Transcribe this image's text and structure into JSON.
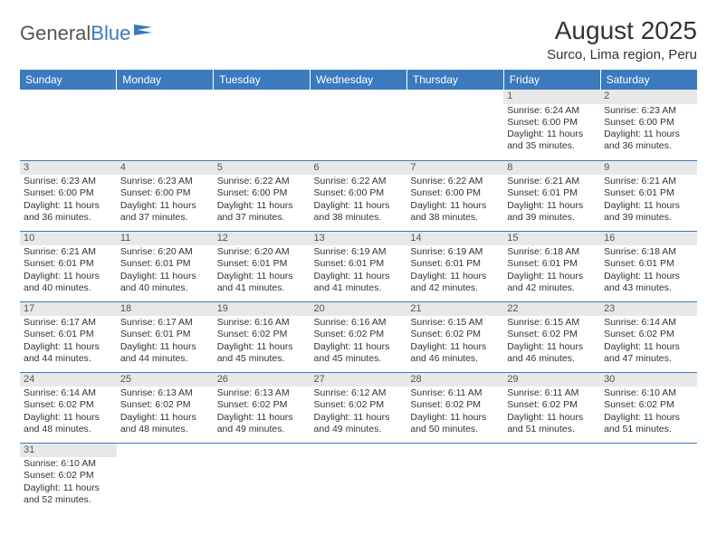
{
  "logo": {
    "general": "General",
    "blue": "Blue"
  },
  "header": {
    "month": "August 2025",
    "location": "Surco, Lima region, Peru"
  },
  "colors": {
    "brand_blue": "#3a7abd",
    "header_text": "#ffffff",
    "daynum_bg": "#e8e8e8",
    "text": "#333333",
    "cell_border": "#3a7abd"
  },
  "weekdays": [
    "Sunday",
    "Monday",
    "Tuesday",
    "Wednesday",
    "Thursday",
    "Friday",
    "Saturday"
  ],
  "cells": [
    [
      null,
      null,
      null,
      null,
      null,
      {
        "n": "1",
        "sr": "Sunrise: 6:24 AM",
        "ss": "Sunset: 6:00 PM",
        "dl": "Daylight: 11 hours and 35 minutes."
      },
      {
        "n": "2",
        "sr": "Sunrise: 6:23 AM",
        "ss": "Sunset: 6:00 PM",
        "dl": "Daylight: 11 hours and 36 minutes."
      }
    ],
    [
      {
        "n": "3",
        "sr": "Sunrise: 6:23 AM",
        "ss": "Sunset: 6:00 PM",
        "dl": "Daylight: 11 hours and 36 minutes."
      },
      {
        "n": "4",
        "sr": "Sunrise: 6:23 AM",
        "ss": "Sunset: 6:00 PM",
        "dl": "Daylight: 11 hours and 37 minutes."
      },
      {
        "n": "5",
        "sr": "Sunrise: 6:22 AM",
        "ss": "Sunset: 6:00 PM",
        "dl": "Daylight: 11 hours and 37 minutes."
      },
      {
        "n": "6",
        "sr": "Sunrise: 6:22 AM",
        "ss": "Sunset: 6:00 PM",
        "dl": "Daylight: 11 hours and 38 minutes."
      },
      {
        "n": "7",
        "sr": "Sunrise: 6:22 AM",
        "ss": "Sunset: 6:00 PM",
        "dl": "Daylight: 11 hours and 38 minutes."
      },
      {
        "n": "8",
        "sr": "Sunrise: 6:21 AM",
        "ss": "Sunset: 6:01 PM",
        "dl": "Daylight: 11 hours and 39 minutes."
      },
      {
        "n": "9",
        "sr": "Sunrise: 6:21 AM",
        "ss": "Sunset: 6:01 PM",
        "dl": "Daylight: 11 hours and 39 minutes."
      }
    ],
    [
      {
        "n": "10",
        "sr": "Sunrise: 6:21 AM",
        "ss": "Sunset: 6:01 PM",
        "dl": "Daylight: 11 hours and 40 minutes."
      },
      {
        "n": "11",
        "sr": "Sunrise: 6:20 AM",
        "ss": "Sunset: 6:01 PM",
        "dl": "Daylight: 11 hours and 40 minutes."
      },
      {
        "n": "12",
        "sr": "Sunrise: 6:20 AM",
        "ss": "Sunset: 6:01 PM",
        "dl": "Daylight: 11 hours and 41 minutes."
      },
      {
        "n": "13",
        "sr": "Sunrise: 6:19 AM",
        "ss": "Sunset: 6:01 PM",
        "dl": "Daylight: 11 hours and 41 minutes."
      },
      {
        "n": "14",
        "sr": "Sunrise: 6:19 AM",
        "ss": "Sunset: 6:01 PM",
        "dl": "Daylight: 11 hours and 42 minutes."
      },
      {
        "n": "15",
        "sr": "Sunrise: 6:18 AM",
        "ss": "Sunset: 6:01 PM",
        "dl": "Daylight: 11 hours and 42 minutes."
      },
      {
        "n": "16",
        "sr": "Sunrise: 6:18 AM",
        "ss": "Sunset: 6:01 PM",
        "dl": "Daylight: 11 hours and 43 minutes."
      }
    ],
    [
      {
        "n": "17",
        "sr": "Sunrise: 6:17 AM",
        "ss": "Sunset: 6:01 PM",
        "dl": "Daylight: 11 hours and 44 minutes."
      },
      {
        "n": "18",
        "sr": "Sunrise: 6:17 AM",
        "ss": "Sunset: 6:01 PM",
        "dl": "Daylight: 11 hours and 44 minutes."
      },
      {
        "n": "19",
        "sr": "Sunrise: 6:16 AM",
        "ss": "Sunset: 6:02 PM",
        "dl": "Daylight: 11 hours and 45 minutes."
      },
      {
        "n": "20",
        "sr": "Sunrise: 6:16 AM",
        "ss": "Sunset: 6:02 PM",
        "dl": "Daylight: 11 hours and 45 minutes."
      },
      {
        "n": "21",
        "sr": "Sunrise: 6:15 AM",
        "ss": "Sunset: 6:02 PM",
        "dl": "Daylight: 11 hours and 46 minutes."
      },
      {
        "n": "22",
        "sr": "Sunrise: 6:15 AM",
        "ss": "Sunset: 6:02 PM",
        "dl": "Daylight: 11 hours and 46 minutes."
      },
      {
        "n": "23",
        "sr": "Sunrise: 6:14 AM",
        "ss": "Sunset: 6:02 PM",
        "dl": "Daylight: 11 hours and 47 minutes."
      }
    ],
    [
      {
        "n": "24",
        "sr": "Sunrise: 6:14 AM",
        "ss": "Sunset: 6:02 PM",
        "dl": "Daylight: 11 hours and 48 minutes."
      },
      {
        "n": "25",
        "sr": "Sunrise: 6:13 AM",
        "ss": "Sunset: 6:02 PM",
        "dl": "Daylight: 11 hours and 48 minutes."
      },
      {
        "n": "26",
        "sr": "Sunrise: 6:13 AM",
        "ss": "Sunset: 6:02 PM",
        "dl": "Daylight: 11 hours and 49 minutes."
      },
      {
        "n": "27",
        "sr": "Sunrise: 6:12 AM",
        "ss": "Sunset: 6:02 PM",
        "dl": "Daylight: 11 hours and 49 minutes."
      },
      {
        "n": "28",
        "sr": "Sunrise: 6:11 AM",
        "ss": "Sunset: 6:02 PM",
        "dl": "Daylight: 11 hours and 50 minutes."
      },
      {
        "n": "29",
        "sr": "Sunrise: 6:11 AM",
        "ss": "Sunset: 6:02 PM",
        "dl": "Daylight: 11 hours and 51 minutes."
      },
      {
        "n": "30",
        "sr": "Sunrise: 6:10 AM",
        "ss": "Sunset: 6:02 PM",
        "dl": "Daylight: 11 hours and 51 minutes."
      }
    ],
    [
      {
        "n": "31",
        "sr": "Sunrise: 6:10 AM",
        "ss": "Sunset: 6:02 PM",
        "dl": "Daylight: 11 hours and 52 minutes."
      },
      null,
      null,
      null,
      null,
      null,
      null
    ]
  ]
}
